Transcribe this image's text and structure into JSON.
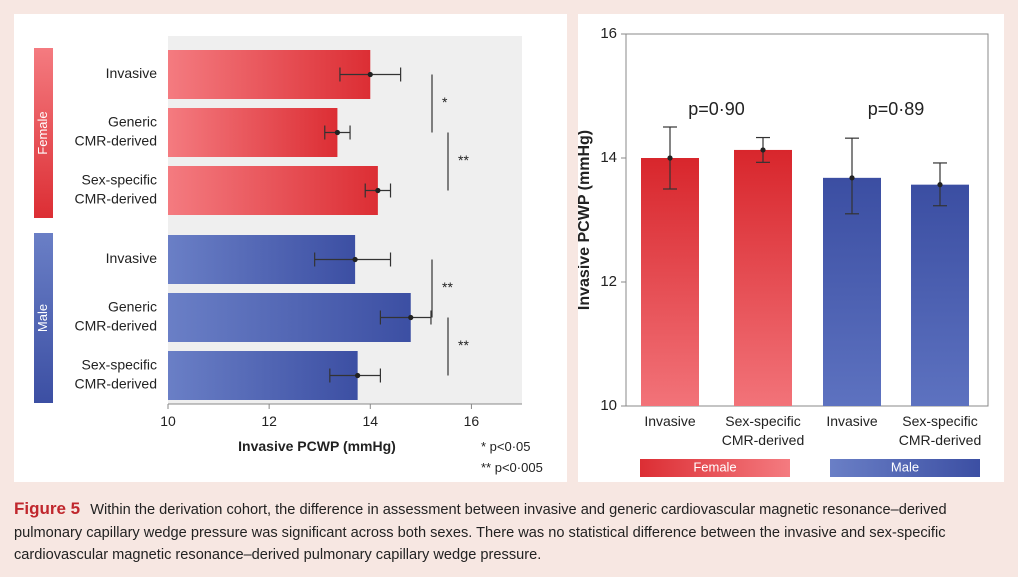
{
  "chart_data": [
    {
      "type": "bar",
      "orientation": "horizontal",
      "groups": [
        {
          "name": "Female",
          "color_start": "#f47b80",
          "color_end": "#dc2e34",
          "bars": [
            {
              "label": [
                "Invasive"
              ],
              "value": 14.0,
              "err_low": 13.4,
              "err_high": 14.6
            },
            {
              "label": [
                "Generic",
                "CMR-derived"
              ],
              "value": 13.35,
              "err_low": 13.1,
              "err_high": 13.6
            },
            {
              "label": [
                "Sex-specific",
                "CMR-derived"
              ],
              "value": 14.15,
              "err_low": 13.9,
              "err_high": 14.4
            }
          ]
        },
        {
          "name": "Male",
          "color_start": "#6a7fc6",
          "color_end": "#3c4fa3",
          "bars": [
            {
              "label": [
                "Invasive"
              ],
              "value": 13.7,
              "err_low": 12.9,
              "err_high": 14.4
            },
            {
              "label": [
                "Generic",
                "CMR-derived"
              ],
              "value": 14.8,
              "err_low": 14.2,
              "err_high": 15.2
            },
            {
              "label": [
                "Sex-specific",
                "CMR-derived"
              ],
              "value": 13.75,
              "err_low": 13.2,
              "err_high": 14.2
            }
          ]
        }
      ],
      "significance": [
        {
          "group": 0,
          "from_bar": 0,
          "to_bar": 1,
          "label": "*"
        },
        {
          "group": 0,
          "from_bar": 1,
          "to_bar": 2,
          "label": "**"
        },
        {
          "group": 1,
          "from_bar": 0,
          "to_bar": 1,
          "label": "**"
        },
        {
          "group": 1,
          "from_bar": 1,
          "to_bar": 2,
          "label": "**"
        }
      ],
      "xlabel": "Invasive PCWP (mmHg)",
      "xlim": [
        10,
        17
      ],
      "xticks": [
        10,
        12,
        14,
        16
      ],
      "legend_notes": [
        "*  p<0·05",
        "** p<0·005"
      ]
    },
    {
      "type": "bar",
      "orientation": "vertical",
      "categories": [
        {
          "label": [
            "Invasive"
          ],
          "group": "Female",
          "value": 14.0,
          "err_low": 13.5,
          "err_high": 14.5
        },
        {
          "label": [
            "Sex-specific",
            "CMR-derived"
          ],
          "group": "Female",
          "value": 14.13,
          "err_low": 13.93,
          "err_high": 14.33
        },
        {
          "label": [
            "Invasive"
          ],
          "group": "Male",
          "value": 13.68,
          "err_low": 13.1,
          "err_high": 14.32
        },
        {
          "label": [
            "Sex-specific",
            "CMR-derived"
          ],
          "group": "Male",
          "value": 13.57,
          "err_low": 13.23,
          "err_high": 13.92
        }
      ],
      "annotations": [
        {
          "text": "p=0·90",
          "pair": [
            0,
            1
          ]
        },
        {
          "text": "p=0·89",
          "pair": [
            2,
            3
          ]
        }
      ],
      "ylabel": "Invasive PCWP (mmHg)",
      "ylim": [
        10,
        16
      ],
      "yticks": [
        10,
        12,
        14,
        16
      ],
      "legend": [
        {
          "label": "Female",
          "color_start": "#dc2e34",
          "color_end": "#f47b80"
        },
        {
          "label": "Male",
          "color_start": "#6a7fc6",
          "color_end": "#3c4fa3"
        }
      ],
      "female_color_top": "#d8262c",
      "female_color_bottom": "#f27379",
      "male_color_top": "#3b4ea2",
      "male_color_bottom": "#5d72c0"
    }
  ],
  "caption": {
    "label": "Figure 5",
    "text": "Within the derivation cohort, the difference in assessment between invasive and generic cardiovascular magnetic resonance–derived pulmonary capillary wedge pressure was significant across both sexes. There was no statistical difference between the invasive and sex-specific cardiovascular magnetic resonance–derived pulmonary capillary wedge pressure."
  }
}
